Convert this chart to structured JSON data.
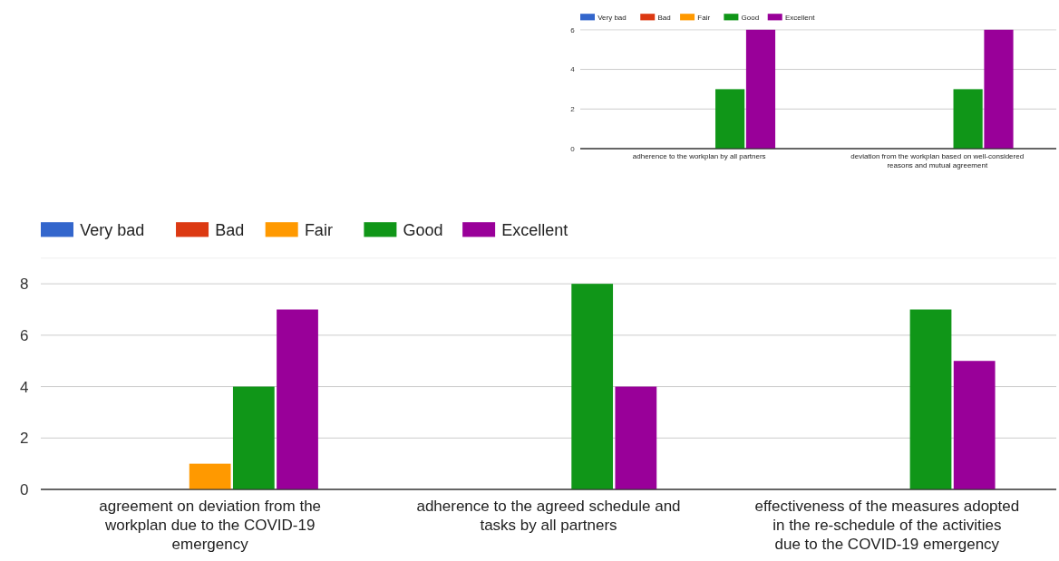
{
  "chart_data": [
    {
      "type": "bar",
      "categories": [
        "adherence to the workplan by all partners",
        "deviation from the workplan based on well-considered reasons and mutual agreement"
      ],
      "series": [
        {
          "name": "Very bad",
          "color": "#3366cc",
          "values": [
            0,
            0
          ]
        },
        {
          "name": "Bad",
          "color": "#dc3912",
          "values": [
            0,
            0
          ]
        },
        {
          "name": "Fair",
          "color": "#ff9900",
          "values": [
            0,
            0
          ]
        },
        {
          "name": "Good",
          "color": "#109618",
          "values": [
            3,
            3
          ]
        },
        {
          "name": "Excellent",
          "color": "#990099",
          "values": [
            6,
            6
          ]
        }
      ],
      "ylim": [
        0,
        6
      ],
      "yticks": [
        0,
        2,
        4,
        6
      ],
      "grid": "y",
      "legend": "top left"
    },
    {
      "type": "bar",
      "categories": [
        "agreement on deviation from the workplan due to the COVID-19 emergency",
        "adherence to the agreed schedule and tasks by all partners",
        "effectiveness of the measures adopted in the re-schedule of the activities due to the COVID-19 emergency"
      ],
      "series": [
        {
          "name": "Very bad",
          "color": "#3366cc",
          "values": [
            0,
            0,
            0
          ]
        },
        {
          "name": "Bad",
          "color": "#dc3912",
          "values": [
            0,
            0,
            0
          ]
        },
        {
          "name": "Fair",
          "color": "#ff9900",
          "values": [
            1,
            0,
            0
          ]
        },
        {
          "name": "Good",
          "color": "#109618",
          "values": [
            4,
            8,
            7
          ]
        },
        {
          "name": "Excellent",
          "color": "#990099",
          "values": [
            7,
            4,
            5
          ]
        }
      ],
      "ylim": [
        0,
        9
      ],
      "yticks": [
        0,
        2,
        4,
        6,
        8
      ],
      "grid": "y",
      "legend": "top left"
    }
  ]
}
